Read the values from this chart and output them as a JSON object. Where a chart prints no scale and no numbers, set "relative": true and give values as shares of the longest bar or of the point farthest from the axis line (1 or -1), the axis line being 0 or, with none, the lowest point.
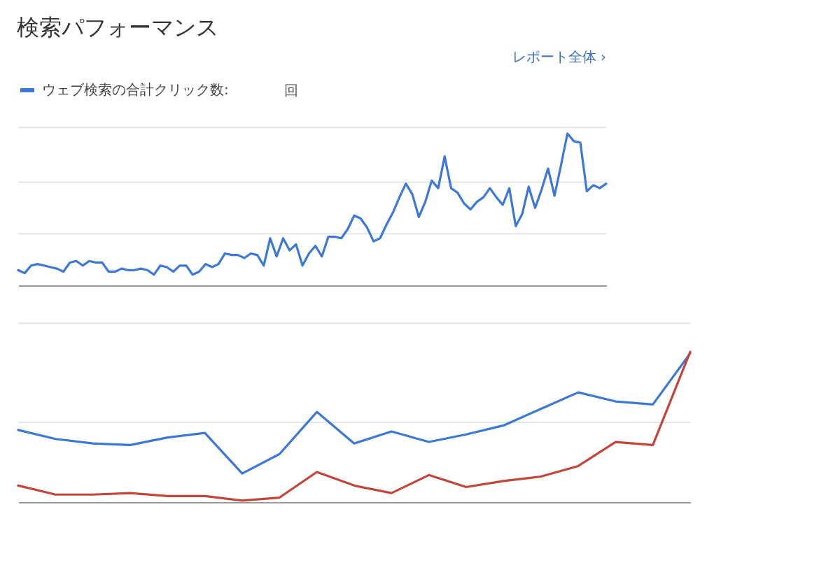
{
  "chart_data": [
    {
      "type": "line",
      "title": "検索パフォーマンス",
      "relative": true,
      "legend": "top left",
      "annotations": [
        "レポート全体 ›",
        "回"
      ],
      "ref_lines": [
        {
          "axis": "y",
          "value": 0.34,
          "color": "#e6e6e6"
        },
        {
          "axis": "y",
          "value": 0.68,
          "color": "#e6e6e6"
        },
        {
          "axis": "y",
          "value": 1.04,
          "color": "#e6e6e6"
        }
      ],
      "categories": [
        null,
        null,
        null,
        null,
        null,
        null,
        null,
        null,
        null,
        null,
        null,
        null,
        null,
        null,
        null,
        null,
        null,
        null,
        null,
        null,
        null,
        null,
        null,
        null,
        null,
        null,
        null,
        null,
        null,
        null,
        null,
        null,
        null,
        null,
        null,
        null,
        null,
        null,
        null,
        null,
        null,
        null,
        null,
        null,
        null,
        null,
        null,
        null,
        null,
        null,
        null,
        null,
        null,
        null,
        null,
        null,
        null,
        null,
        null,
        null,
        null,
        null,
        null,
        null,
        null,
        null,
        null,
        null,
        null,
        null,
        null,
        null,
        null,
        null,
        null,
        null,
        null,
        null,
        null,
        null,
        null,
        null,
        null,
        null,
        null,
        null,
        null,
        null,
        null,
        null,
        null,
        null
      ],
      "series": [
        {
          "name": "ウェブ検索の合計クリック数:",
          "color": "#3b78d8",
          "values": [
            0.1,
            0.08,
            0.13,
            0.14,
            0.13,
            0.12,
            0.11,
            0.09,
            0.15,
            0.16,
            0.13,
            0.16,
            0.15,
            0.15,
            0.09,
            0.09,
            0.11,
            0.1,
            0.1,
            0.11,
            0.1,
            0.07,
            0.13,
            0.12,
            0.09,
            0.13,
            0.13,
            0.07,
            0.09,
            0.14,
            0.12,
            0.14,
            0.21,
            0.2,
            0.2,
            0.18,
            0.21,
            0.2,
            0.13,
            0.31,
            0.19,
            0.31,
            0.23,
            0.27,
            0.13,
            0.21,
            0.26,
            0.19,
            0.32,
            0.32,
            0.31,
            0.37,
            0.46,
            0.44,
            0.38,
            0.29,
            0.31,
            0.4,
            0.48,
            0.58,
            0.67,
            0.6,
            0.45,
            0.55,
            0.69,
            0.64,
            0.85,
            0.64,
            0.61,
            0.54,
            0.5,
            0.55,
            0.58,
            0.64,
            0.58,
            0.53,
            0.64,
            0.39,
            0.47,
            0.65,
            0.51,
            0.63,
            0.77,
            0.59,
            0.79,
            1.0,
            0.95,
            0.94,
            0.62,
            0.66,
            0.64,
            0.67
          ]
        }
      ]
    },
    {
      "type": "line",
      "relative": true,
      "ref_lines": [
        {
          "axis": "y",
          "value": 0.53,
          "color": "#e6e6e6"
        },
        {
          "axis": "y",
          "value": 1.19,
          "color": "#e6e6e6"
        }
      ],
      "categories": [
        null,
        null,
        null,
        null,
        null,
        null,
        null,
        null,
        null,
        null,
        null,
        null,
        null,
        null,
        null,
        null,
        null,
        null,
        null
      ],
      "series": [
        {
          "color": "#3b78d8",
          "values": [
            0.48,
            0.42,
            0.39,
            0.38,
            0.43,
            0.46,
            0.19,
            0.32,
            0.6,
            0.39,
            0.47,
            0.4,
            0.45,
            0.51,
            0.62,
            0.73,
            0.67,
            0.65,
            0.99
          ]
        },
        {
          "color": "#c5443a",
          "values": [
            0.11,
            0.05,
            0.05,
            0.06,
            0.04,
            0.04,
            0.01,
            0.03,
            0.2,
            0.11,
            0.06,
            0.18,
            0.1,
            0.14,
            0.17,
            0.24,
            0.4,
            0.38,
            1
          ]
        }
      ]
    }
  ]
}
